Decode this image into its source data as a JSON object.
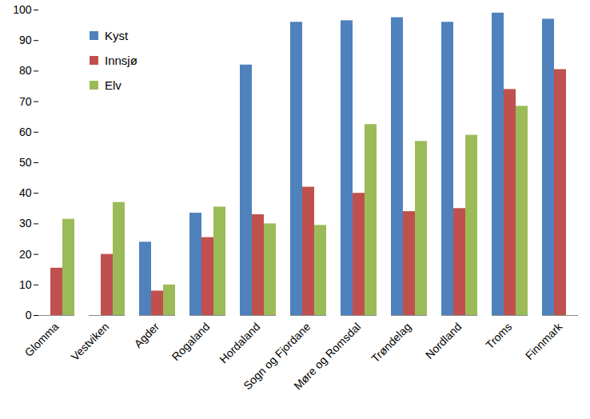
{
  "chart_data": {
    "type": "bar",
    "categories": [
      "Glomma",
      "Vestviken",
      "Agder",
      "Rogaland",
      "Hordaland",
      "Sogn og Fjordane",
      "Møre og Romsdal",
      "Trøndelag",
      "Nordland",
      "Troms",
      "Finnmark"
    ],
    "series": [
      {
        "name": "Kyst",
        "color": "#4f81bd",
        "values": [
          null,
          null,
          24,
          33.5,
          82,
          96,
          96.5,
          97.5,
          96,
          99,
          97
        ]
      },
      {
        "name": "Innsjø",
        "color": "#c0504d",
        "values": [
          15.5,
          20,
          8,
          25.5,
          33,
          42,
          40,
          34,
          35,
          74,
          80.5
        ]
      },
      {
        "name": "Elv",
        "color": "#9bbb59",
        "values": [
          31.5,
          37,
          10,
          35.5,
          30,
          29.5,
          62.5,
          57,
          59,
          68.5,
          null
        ]
      }
    ],
    "ylim": [
      0,
      100
    ],
    "yticks": [
      0,
      10,
      20,
      30,
      40,
      50,
      60,
      70,
      80,
      90,
      100
    ],
    "grid": false,
    "legend": "upper left"
  }
}
